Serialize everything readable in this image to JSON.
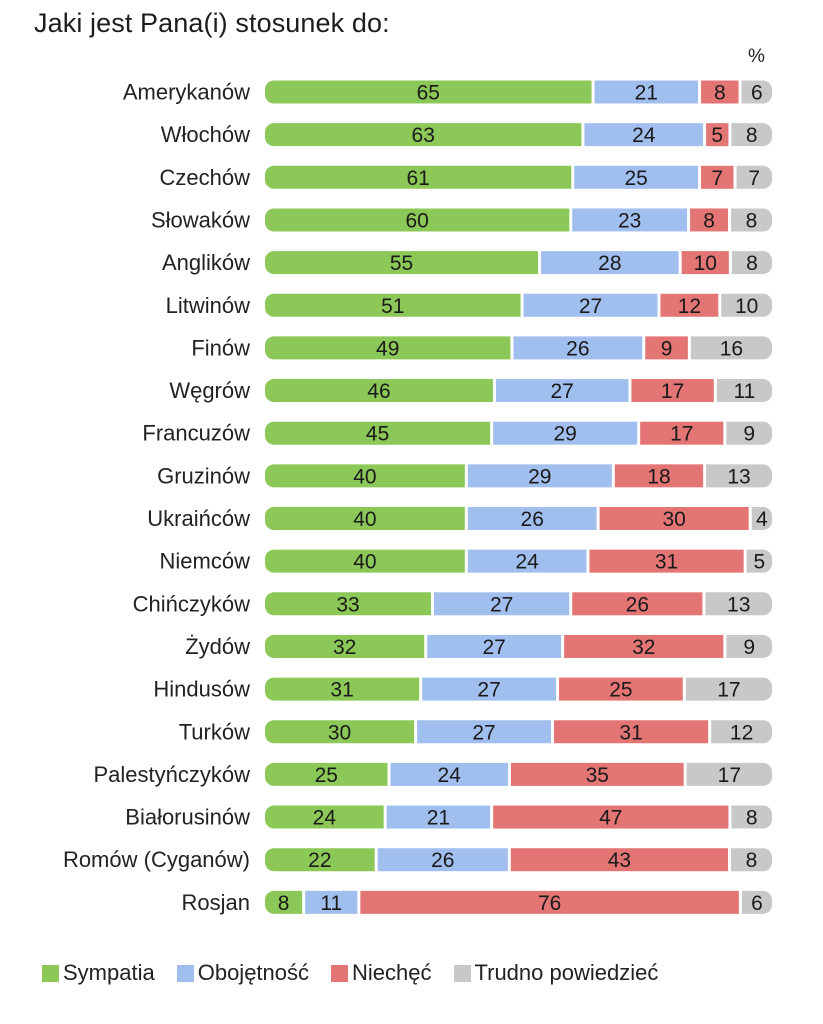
{
  "chart_data": {
    "type": "bar",
    "stacked": true,
    "orientation": "horizontal",
    "title": "Jaki jest Pana(i) stosunek do:",
    "unit": "%",
    "categories": [
      "Amerykanów",
      "Włochów",
      "Czechów",
      "Słowaków",
      "Anglików",
      "Litwinów",
      "Finów",
      "Węgrów",
      "Francuzów",
      "Gruzinów",
      "Ukraińców",
      "Niemców",
      "Chińczyków",
      "Żydów",
      "Hindusów",
      "Turków",
      "Palestyńczyków",
      "Białorusinów",
      "Romów (Cyganów)",
      "Rosjan"
    ],
    "series": [
      {
        "name": "Sympatia",
        "color": "#8cc857",
        "values": [
          65,
          63,
          61,
          60,
          55,
          51,
          49,
          46,
          45,
          40,
          40,
          40,
          33,
          32,
          31,
          30,
          25,
          24,
          22,
          8
        ]
      },
      {
        "name": "Obojętność",
        "color": "#a1bfee",
        "values": [
          21,
          24,
          25,
          23,
          28,
          27,
          26,
          27,
          29,
          29,
          26,
          24,
          27,
          27,
          27,
          27,
          24,
          21,
          26,
          11
        ]
      },
      {
        "name": "Niechęć",
        "color": "#e37675",
        "values": [
          8,
          5,
          7,
          8,
          10,
          12,
          9,
          17,
          17,
          18,
          30,
          31,
          26,
          32,
          25,
          31,
          35,
          47,
          43,
          76
        ]
      },
      {
        "name": "Trudno powiedzieć",
        "color": "#c8c8c8",
        "values": [
          6,
          8,
          7,
          8,
          8,
          10,
          16,
          11,
          9,
          13,
          4,
          5,
          13,
          9,
          17,
          12,
          17,
          8,
          8,
          6
        ]
      }
    ],
    "xlim": [
      0,
      100
    ],
    "grid": false,
    "legend_position": "bottom"
  }
}
